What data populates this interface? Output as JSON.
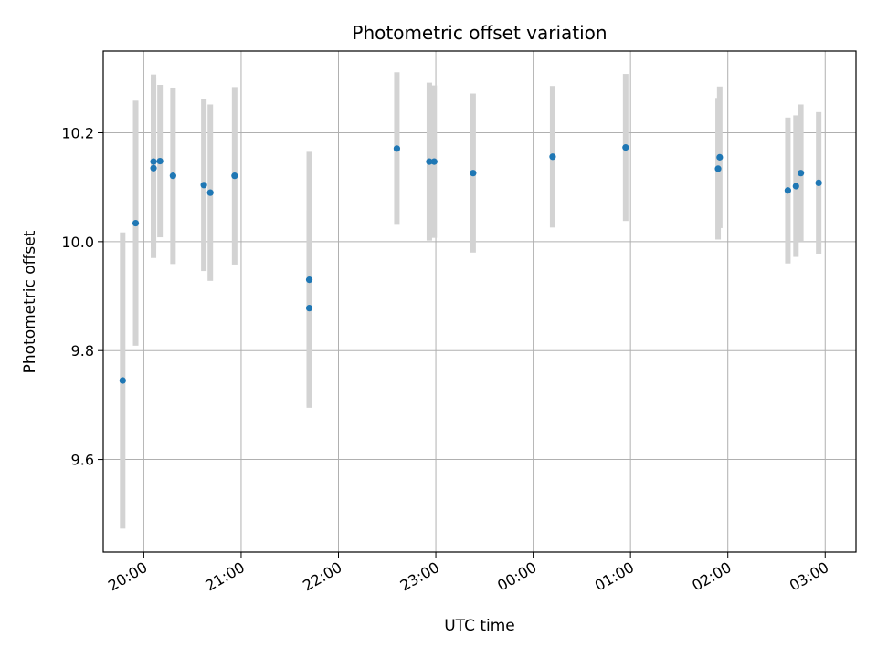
{
  "chart_data": {
    "type": "scatter",
    "title": "Photometric offset variation",
    "xlabel": "UTC time",
    "ylabel": "Photometric offset",
    "x_axis": "time (UTC), hours after midnight on the starting date; values past 24 are next day",
    "xlim": [
      "19:35",
      "03:19"
    ],
    "ylim": [
      9.43,
      10.35
    ],
    "x_ticks": [
      "20:00",
      "21:00",
      "22:00",
      "23:00",
      "00:00",
      "01:00",
      "02:00",
      "03:00"
    ],
    "y_ticks": [
      "9.6",
      "9.8",
      "10.0",
      "10.2"
    ],
    "grid": true,
    "marker_color": "#1f77b4",
    "errorbar_color": "#d3d3d3",
    "points": [
      {
        "t": "19:47",
        "y": 9.745,
        "yerr": 0.272
      },
      {
        "t": "19:55",
        "y": 10.034,
        "yerr": 0.225
      },
      {
        "t": "20:06",
        "y": 10.135,
        "yerr": 0.165
      },
      {
        "t": "20:06",
        "y": 10.147,
        "yerr": 0.16
      },
      {
        "t": "20:10",
        "y": 10.148,
        "yerr": 0.14
      },
      {
        "t": "20:18",
        "y": 10.121,
        "yerr": 0.162
      },
      {
        "t": "20:37",
        "y": 10.104,
        "yerr": 0.158
      },
      {
        "t": "20:41",
        "y": 10.09,
        "yerr": 0.162
      },
      {
        "t": "20:56",
        "y": 10.121,
        "yerr": 0.163
      },
      {
        "t": "21:42",
        "y": 9.93,
        "yerr": 0.235
      },
      {
        "t": "21:42",
        "y": 9.878,
        "yerr": 0.18
      },
      {
        "t": "22:36",
        "y": 10.171,
        "yerr": 0.14
      },
      {
        "t": "22:56",
        "y": 10.147,
        "yerr": 0.145
      },
      {
        "t": "22:59",
        "y": 10.147,
        "yerr": 0.14
      },
      {
        "t": "23:23",
        "y": 10.126,
        "yerr": 0.146
      },
      {
        "t": "00:12",
        "y": 10.156,
        "yerr": 0.13
      },
      {
        "t": "00:57",
        "y": 10.173,
        "yerr": 0.135
      },
      {
        "t": "01:54",
        "y": 10.134,
        "yerr": 0.13
      },
      {
        "t": "01:55",
        "y": 10.155,
        "yerr": 0.13
      },
      {
        "t": "02:37",
        "y": 10.094,
        "yerr": 0.134
      },
      {
        "t": "02:42",
        "y": 10.102,
        "yerr": 0.13
      },
      {
        "t": "02:45",
        "y": 10.126,
        "yerr": 0.126
      },
      {
        "t": "02:56",
        "y": 10.108,
        "yerr": 0.13
      }
    ]
  }
}
